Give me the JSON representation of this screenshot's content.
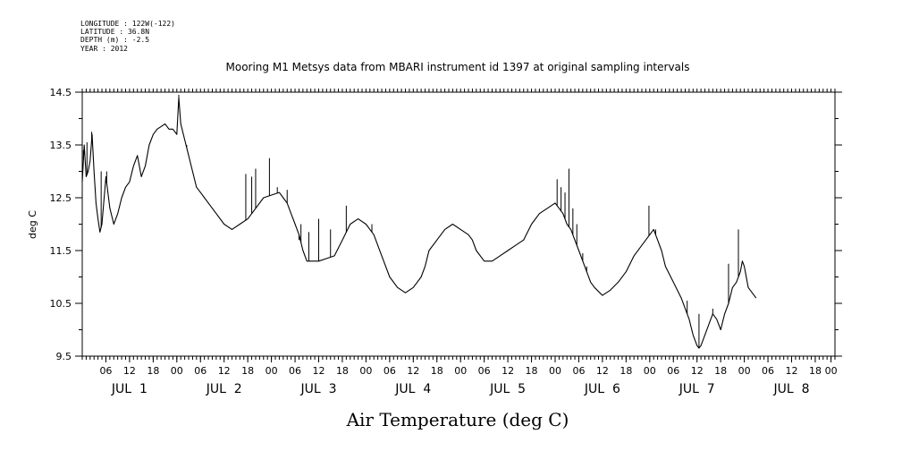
{
  "header": {
    "longitude": "LONGITUDE : 122W(-122)",
    "latitude": "LATITUDE : 36.8N",
    "depth": "DEPTH (m) : -2.5",
    "year": "YEAR : 2012"
  },
  "chart_data": {
    "type": "line",
    "title": "Mooring M1 Metsys data from MBARI instrument id 1397 at original sampling intervals",
    "xlabel": "Air Temperature (deg C)",
    "ylabel": "deg C",
    "ylim": [
      9.5,
      14.5
    ],
    "yticks": [
      9.5,
      10.5,
      11.5,
      12.5,
      13.5,
      14.5
    ],
    "ytick_labels": [
      "9.5",
      "10.5",
      "11.5",
      "12.5",
      "13.5",
      "14.5"
    ],
    "xlim_hours": [
      0,
      191
    ],
    "x_hour_ticks": [
      {
        "hour": 6,
        "label": "06"
      },
      {
        "hour": 12,
        "label": "12"
      },
      {
        "hour": 18,
        "label": "18"
      },
      {
        "hour": 24,
        "label": "00"
      },
      {
        "hour": 30,
        "label": "06"
      },
      {
        "hour": 36,
        "label": "12"
      },
      {
        "hour": 42,
        "label": "18"
      },
      {
        "hour": 48,
        "label": "00"
      },
      {
        "hour": 54,
        "label": "06"
      },
      {
        "hour": 60,
        "label": "12"
      },
      {
        "hour": 66,
        "label": "18"
      },
      {
        "hour": 72,
        "label": "00"
      },
      {
        "hour": 78,
        "label": "06"
      },
      {
        "hour": 84,
        "label": "12"
      },
      {
        "hour": 90,
        "label": "18"
      },
      {
        "hour": 96,
        "label": "00"
      },
      {
        "hour": 102,
        "label": "06"
      },
      {
        "hour": 108,
        "label": "12"
      },
      {
        "hour": 114,
        "label": "18"
      },
      {
        "hour": 120,
        "label": "00"
      },
      {
        "hour": 126,
        "label": "06"
      },
      {
        "hour": 132,
        "label": "12"
      },
      {
        "hour": 138,
        "label": "18"
      },
      {
        "hour": 144,
        "label": "00"
      },
      {
        "hour": 150,
        "label": "06"
      },
      {
        "hour": 156,
        "label": "12"
      },
      {
        "hour": 162,
        "label": "18"
      },
      {
        "hour": 168,
        "label": "00"
      },
      {
        "hour": 174,
        "label": "06"
      },
      {
        "hour": 180,
        "label": "12"
      },
      {
        "hour": 186,
        "label": "18"
      },
      {
        "hour": 190,
        "label": "00"
      }
    ],
    "day_labels": [
      {
        "hour": 12,
        "label": "JUL  1"
      },
      {
        "hour": 36,
        "label": "JUL  2"
      },
      {
        "hour": 60,
        "label": "JUL  3"
      },
      {
        "hour": 84,
        "label": "JUL  4"
      },
      {
        "hour": 108,
        "label": "JUL  5"
      },
      {
        "hour": 132,
        "label": "JUL  6"
      },
      {
        "hour": 156,
        "label": "JUL  7"
      },
      {
        "hour": 180,
        "label": "JUL  8"
      }
    ],
    "series": [
      {
        "x": [
          0,
          0.5,
          1,
          1.5,
          2,
          2.5,
          3,
          3.5,
          4,
          4.5,
          5,
          6,
          7,
          8,
          9,
          10,
          11,
          12,
          13,
          14,
          15,
          16,
          17,
          18,
          19,
          20,
          21,
          22,
          23,
          24,
          24.5,
          25,
          26,
          27,
          28,
          29,
          30,
          31,
          32,
          33,
          34,
          36,
          38,
          40,
          42,
          44,
          46,
          48,
          50,
          51,
          52,
          53,
          54,
          55,
          56,
          57,
          58,
          59,
          60,
          62,
          64,
          66,
          68,
          70,
          72,
          74,
          76,
          78,
          80,
          82,
          84,
          86,
          87,
          88,
          90,
          92,
          94,
          96,
          98,
          99,
          100,
          102,
          104,
          106,
          108,
          110,
          112,
          114,
          116,
          118,
          120,
          121,
          122,
          123,
          124,
          125,
          126,
          127,
          128,
          129,
          130,
          132,
          134,
          136,
          138,
          140,
          142,
          144,
          145,
          146,
          147,
          148,
          150,
          152,
          153,
          154,
          155,
          156,
          156.5,
          157,
          158,
          159,
          160,
          161,
          162,
          163,
          164,
          165,
          166,
          167,
          167.5,
          168,
          168.5,
          169,
          170,
          171
        ],
        "y": [
          12.8,
          13.5,
          12.9,
          13.0,
          13.2,
          13.7,
          13.0,
          12.4,
          12.1,
          11.85,
          12.0,
          12.9,
          12.3,
          12.0,
          12.2,
          12.5,
          12.7,
          12.8,
          13.1,
          13.3,
          12.9,
          13.1,
          13.5,
          13.7,
          13.8,
          13.85,
          13.9,
          13.8,
          13.8,
          13.7,
          14.4,
          13.9,
          13.6,
          13.3,
          13.0,
          12.7,
          12.6,
          12.5,
          12.4,
          12.3,
          12.2,
          12.0,
          11.9,
          12.0,
          12.1,
          12.3,
          12.5,
          12.55,
          12.6,
          12.5,
          12.4,
          12.2,
          12.0,
          11.8,
          11.5,
          11.3,
          11.3,
          11.3,
          11.3,
          11.35,
          11.4,
          11.7,
          12.0,
          12.1,
          12.0,
          11.8,
          11.4,
          11.0,
          10.8,
          10.7,
          10.8,
          11.0,
          11.2,
          11.5,
          11.7,
          11.9,
          12.0,
          11.9,
          11.8,
          11.7,
          11.5,
          11.3,
          11.3,
          11.4,
          11.5,
          11.6,
          11.7,
          12.0,
          12.2,
          12.3,
          12.4,
          12.3,
          12.2,
          12.0,
          11.9,
          11.7,
          11.5,
          11.3,
          11.1,
          10.9,
          10.8,
          10.65,
          10.75,
          10.9,
          11.1,
          11.4,
          11.6,
          11.8,
          11.9,
          11.7,
          11.5,
          11.2,
          10.9,
          10.6,
          10.4,
          10.2,
          9.9,
          9.7,
          9.65,
          9.7,
          9.9,
          10.1,
          10.3,
          10.2,
          10.0,
          10.3,
          10.5,
          10.8,
          10.9,
          11.1,
          11.3,
          11.2,
          11.0,
          10.8,
          10.7,
          10.6
        ]
      }
    ],
    "spikes": [
      {
        "x": 0.3,
        "y": 13.4
      },
      {
        "x": 1.2,
        "y": 13.55
      },
      {
        "x": 2.4,
        "y": 13.75
      },
      {
        "x": 4.8,
        "y": 13.0
      },
      {
        "x": 6.2,
        "y": 13.0
      },
      {
        "x": 24.5,
        "y": 14.45
      },
      {
        "x": 26.5,
        "y": 13.5
      },
      {
        "x": 30.5,
        "y": 12.55
      },
      {
        "x": 41.5,
        "y": 12.95
      },
      {
        "x": 43.0,
        "y": 12.9
      },
      {
        "x": 44.0,
        "y": 13.05
      },
      {
        "x": 47.5,
        "y": 13.25
      },
      {
        "x": 49.5,
        "y": 12.7
      },
      {
        "x": 52.0,
        "y": 12.65
      },
      {
        "x": 55.0,
        "y": 11.7
      },
      {
        "x": 55.5,
        "y": 12.0
      },
      {
        "x": 57.5,
        "y": 11.85
      },
      {
        "x": 60.0,
        "y": 12.1
      },
      {
        "x": 63.0,
        "y": 11.9
      },
      {
        "x": 67.0,
        "y": 12.35
      },
      {
        "x": 73.5,
        "y": 12.0
      },
      {
        "x": 120.5,
        "y": 12.85
      },
      {
        "x": 121.5,
        "y": 12.7
      },
      {
        "x": 122.5,
        "y": 12.6
      },
      {
        "x": 123.5,
        "y": 13.05
      },
      {
        "x": 124.5,
        "y": 12.3
      },
      {
        "x": 125.5,
        "y": 12.0
      },
      {
        "x": 127.0,
        "y": 11.45
      },
      {
        "x": 128.0,
        "y": 11.2
      },
      {
        "x": 143.8,
        "y": 12.35
      },
      {
        "x": 145.5,
        "y": 11.9
      },
      {
        "x": 153.5,
        "y": 10.55
      },
      {
        "x": 156.5,
        "y": 10.3
      },
      {
        "x": 160.0,
        "y": 10.4
      },
      {
        "x": 164.0,
        "y": 11.25
      },
      {
        "x": 166.5,
        "y": 11.9
      }
    ]
  }
}
